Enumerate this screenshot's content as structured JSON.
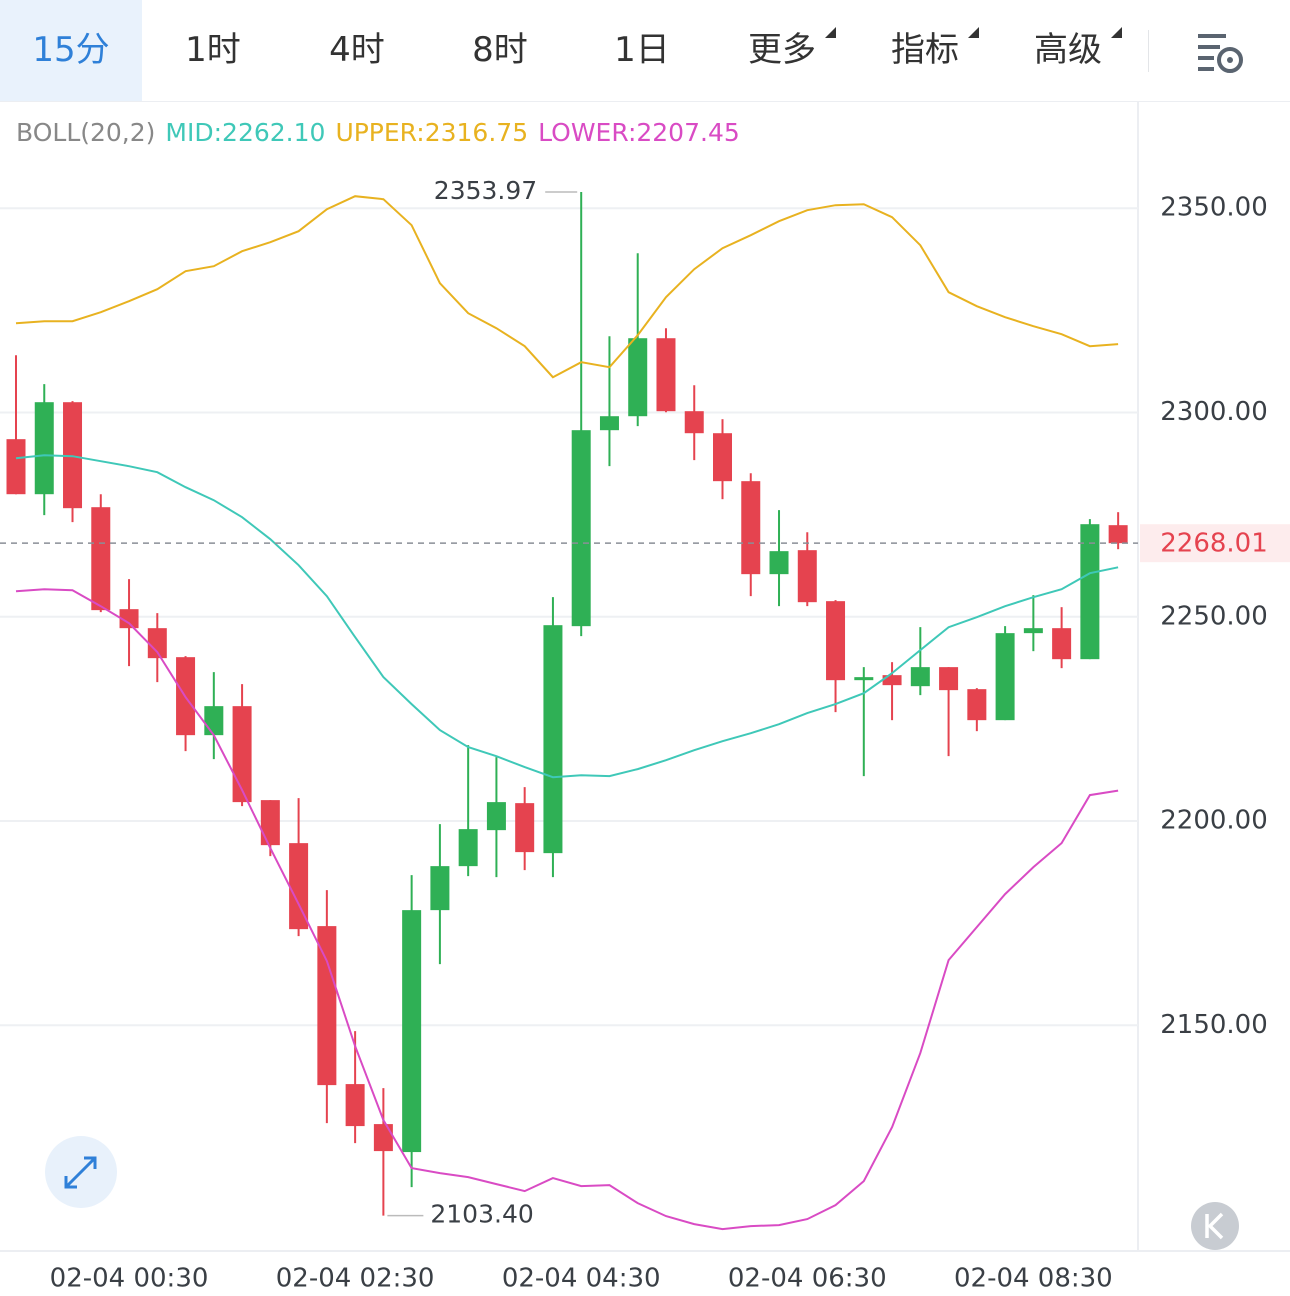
{
  "tabs": [
    "15分",
    "1时",
    "4时",
    "8时",
    "1日",
    "更多",
    "指标",
    "高级"
  ],
  "chart_data": {
    "type": "candlestick",
    "indicator": "BOLL(20,2)",
    "categories": [
      null,
      null,
      null,
      null,
      "02-04 00:30",
      null,
      null,
      null,
      null,
      null,
      null,
      null,
      "02-04 02:30",
      null,
      null,
      null,
      null,
      null,
      null,
      null,
      "02-04 04:30",
      null,
      null,
      null,
      null,
      null,
      null,
      null,
      "02-04 06:30",
      null,
      null,
      null,
      null,
      null,
      null,
      null,
      "02-04 08:30",
      null,
      null,
      null
    ],
    "open": [
      2293.47,
      2280.0,
      2302.52,
      2276.82,
      2251.86,
      2247.21,
      2240.11,
      2221.02,
      2228.12,
      2205.12,
      2194.59,
      2174.28,
      2135.61,
      2125.82,
      2118.97,
      2178.19,
      2188.96,
      2197.77,
      2204.38,
      2192.14,
      2247.7,
      2295.67,
      2299.09,
      2318.18,
      2300.32,
      2294.93,
      2283.19,
      2260.43,
      2266.3,
      2253.82,
      2234.48,
      2235.71,
      2233.01,
      2237.67,
      2232.28,
      2224.69,
      2245.99,
      2247.21,
      2239.62,
      2272.42
    ],
    "high": [
      2314.02,
      2306.93,
      2302.77,
      2280.0,
      2259.2,
      2250.88,
      2240.36,
      2236.44,
      2233.5,
      2205.12,
      2205.6,
      2183.09,
      2148.58,
      2134.63,
      2186.76,
      2199.24,
      2218.58,
      2215.64,
      2208.3,
      2254.8,
      2353.97,
      2318.67,
      2338.99,
      2320.63,
      2306.68,
      2298.36,
      2285.14,
      2276.09,
      2270.7,
      2254.06,
      2237.67,
      2238.89,
      2247.45,
      2237.67,
      2232.53,
      2247.7,
      2255.29,
      2252.35,
      2273.89,
      2275.6
    ],
    "low": [
      2280.0,
      2274.87,
      2273.15,
      2251.13,
      2237.91,
      2233.99,
      2217.11,
      2215.15,
      2203.65,
      2191.41,
      2171.83,
      2126.06,
      2121.17,
      2103.4,
      2110.4,
      2164.98,
      2186.51,
      2186.27,
      2187.98,
      2186.27,
      2245.25,
      2286.86,
      2296.65,
      2300.07,
      2288.33,
      2278.78,
      2255.04,
      2252.59,
      2252.59,
      2226.65,
      2210.99,
      2224.69,
      2230.81,
      2215.88,
      2222.0,
      2224.69,
      2241.58,
      2237.42,
      2239.62,
      2266.54
    ],
    "low_labels": [
      null,
      null,
      null,
      null,
      null,
      null,
      null,
      null,
      null,
      null,
      null,
      null,
      null,
      "2103.40",
      null,
      null,
      null,
      null,
      null,
      null,
      null,
      null,
      null,
      null,
      null,
      null,
      null,
      null,
      null,
      null,
      null,
      null,
      null,
      null,
      null,
      null,
      null,
      null,
      null,
      null
    ],
    "close": [
      2280.0,
      2302.52,
      2276.58,
      2251.62,
      2247.21,
      2239.87,
      2221.02,
      2228.12,
      2204.63,
      2194.1,
      2173.54,
      2135.36,
      2125.33,
      2119.21,
      2178.19,
      2188.96,
      2198.02,
      2204.63,
      2192.39,
      2247.94,
      2295.67,
      2299.09,
      2318.18,
      2300.32,
      2294.93,
      2283.19,
      2260.43,
      2266.06,
      2253.57,
      2234.48,
      2235.22,
      2233.26,
      2237.67,
      2232.04,
      2224.69,
      2245.99,
      2247.21,
      2239.62,
      2272.66,
      2268.01
    ],
    "up_color": "#2fb055",
    "down_color": "#e5434f",
    "series": [
      {
        "name": "MID:",
        "color": "#3fc8b8",
        "values": [
          2288.81,
          2289.55,
          2289.3,
          2288.08,
          2286.86,
          2285.39,
          2281.72,
          2278.54,
          2274.38,
          2268.99,
          2262.63,
          2255.04,
          2245.01,
          2235.22,
          2228.61,
          2222.25,
          2218.09,
          2215.88,
          2213.19,
          2210.74,
          2211.23,
          2210.99,
          2212.7,
          2214.9,
          2217.35,
          2219.55,
          2221.51,
          2223.71,
          2226.41,
          2228.61,
          2231.3,
          2236.2,
          2241.83,
          2247.45,
          2249.9,
          2252.59,
          2254.8,
          2256.75,
          2260.67,
          2262.1
        ],
        "value_labels": [
          null,
          null,
          null,
          null,
          null,
          null,
          null,
          null,
          null,
          null,
          null,
          null,
          null,
          null,
          null,
          null,
          null,
          null,
          null,
          null,
          null,
          null,
          null,
          null,
          null,
          null,
          null,
          null,
          null,
          null,
          null,
          null,
          null,
          null,
          null,
          null,
          null,
          null,
          null,
          "2262.10"
        ]
      },
      {
        "name": "UPPER:",
        "color": "#e8b220",
        "values": [
          2321.85,
          2322.34,
          2322.34,
          2324.55,
          2327.24,
          2330.18,
          2334.58,
          2335.81,
          2339.48,
          2341.68,
          2344.37,
          2349.76,
          2352.94,
          2352.2,
          2345.84,
          2331.64,
          2324.3,
          2320.63,
          2316.23,
          2308.64,
          2312.31,
          2311.09,
          2318.92,
          2328.22,
          2335.07,
          2340.21,
          2343.39,
          2346.82,
          2349.51,
          2350.73,
          2350.98,
          2347.8,
          2340.94,
          2329.44,
          2326.02,
          2323.32,
          2321.12,
          2319.16,
          2316.23,
          2316.75
        ],
        "value_labels": [
          null,
          null,
          null,
          null,
          null,
          null,
          null,
          null,
          null,
          null,
          null,
          null,
          null,
          null,
          null,
          null,
          null,
          null,
          null,
          null,
          null,
          null,
          null,
          null,
          null,
          null,
          null,
          null,
          null,
          null,
          null,
          null,
          null,
          null,
          null,
          null,
          null,
          null,
          null,
          "2316.75"
        ]
      },
      {
        "name": "LOWER:",
        "color": "#d94bc4",
        "values": [
          2256.26,
          2256.75,
          2256.51,
          2252.59,
          2248.43,
          2241.34,
          2230.32,
          2221.02,
          2207.56,
          2193.37,
          2179.66,
          2165.71,
          2144.91,
          2126.8,
          2115.05,
          2113.83,
          2112.85,
          2111.13,
          2109.42,
          2112.6,
          2110.64,
          2110.89,
          2106.48,
          2103.3,
          2101.34,
          2100.12,
          2100.85,
          2101.1,
          2102.57,
          2105.99,
          2111.87,
          2125.08,
          2143.19,
          2165.96,
          2174.03,
          2182.11,
          2188.72,
          2194.59,
          2206.34,
          2207.45
        ],
        "value_labels": [
          null,
          null,
          null,
          null,
          null,
          null,
          null,
          null,
          null,
          null,
          null,
          null,
          null,
          null,
          null,
          null,
          null,
          null,
          null,
          null,
          null,
          null,
          null,
          null,
          null,
          null,
          null,
          null,
          null,
          null,
          null,
          null,
          null,
          null,
          null,
          null,
          null,
          null,
          null,
          "2207.45"
        ]
      }
    ],
    "ylim": [
      2095,
      2376
    ],
    "yticks": [
      {
        "value": 2150,
        "label": "2150.00"
      },
      {
        "value": 2200,
        "label": "2200.00"
      },
      {
        "value": 2250,
        "label": "2250.00"
      },
      {
        "value": 2300,
        "label": "2300.00"
      },
      {
        "value": 2350,
        "label": "2350.00"
      }
    ],
    "grid": true
  }
}
